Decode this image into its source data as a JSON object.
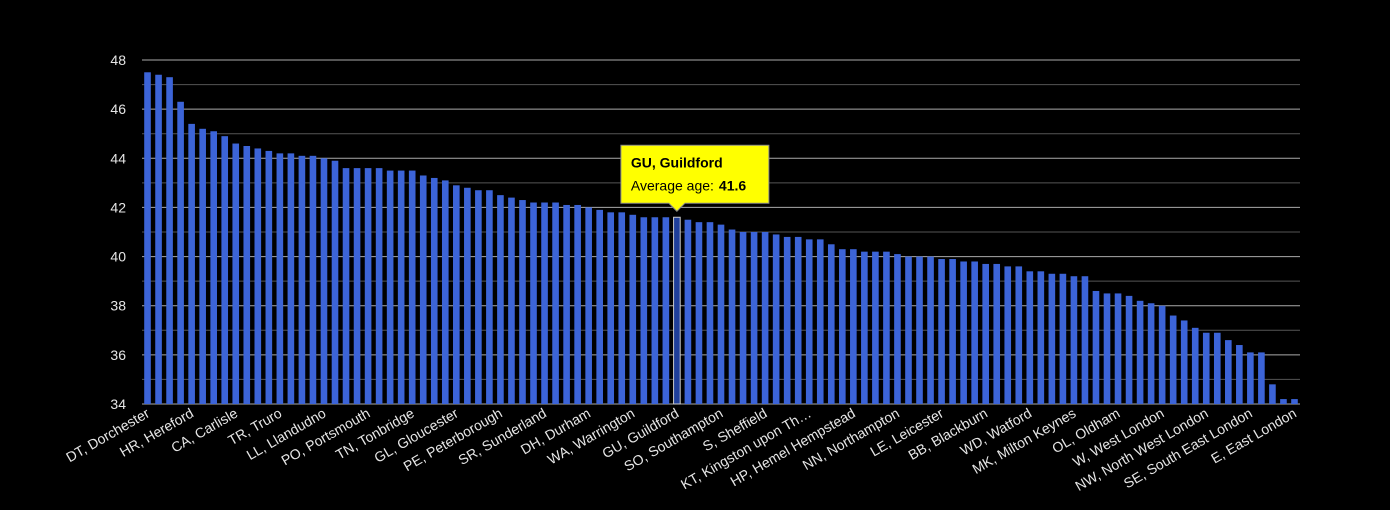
{
  "chart_data": {
    "type": "bar",
    "categories": [
      "DT, Dorchester",
      null,
      null,
      null,
      "HR, Hereford",
      null,
      null,
      null,
      "CA, Carlisle",
      null,
      null,
      null,
      "TR, Truro",
      null,
      null,
      null,
      "LL, Llandudno",
      null,
      null,
      null,
      "PO, Portsmouth",
      null,
      null,
      null,
      "TN, Tonbridge",
      null,
      null,
      null,
      "GL, Gloucester",
      null,
      null,
      null,
      "PE, Peterborough",
      null,
      null,
      null,
      "SR, Sunderland",
      null,
      null,
      null,
      "DH, Durham",
      null,
      null,
      null,
      "WA, Warrington",
      null,
      null,
      null,
      "GU, Guildford",
      null,
      null,
      null,
      "SO, Southampton",
      null,
      null,
      null,
      "S, Sheffield",
      null,
      null,
      null,
      "KT, Kingston upon Th…",
      null,
      null,
      null,
      "HP, Hemel Hempstead",
      null,
      null,
      null,
      "NN, Northampton",
      null,
      null,
      null,
      "LE, Leicester",
      null,
      null,
      null,
      "BB, Blackburn",
      null,
      null,
      null,
      "WD, Watford",
      null,
      null,
      null,
      "MK, Milton Keynes",
      null,
      null,
      null,
      "OL, Oldham",
      null,
      null,
      null,
      "W, West London",
      null,
      null,
      null,
      "NW, North West London",
      null,
      null,
      null,
      "SE, South East London",
      null,
      null,
      null,
      "E, East London"
    ],
    "values": [
      47.5,
      47.4,
      47.3,
      46.3,
      45.4,
      45.2,
      45.1,
      44.9,
      44.6,
      44.5,
      44.4,
      44.3,
      44.2,
      44.2,
      44.1,
      44.1,
      44.0,
      43.9,
      43.6,
      43.6,
      43.6,
      43.6,
      43.5,
      43.5,
      43.5,
      43.3,
      43.2,
      43.1,
      42.9,
      42.8,
      42.7,
      42.7,
      42.5,
      42.4,
      42.3,
      42.2,
      42.2,
      42.2,
      42.1,
      42.1,
      42.0,
      41.9,
      41.8,
      41.8,
      41.7,
      41.6,
      41.6,
      41.6,
      41.6,
      41.5,
      41.4,
      41.4,
      41.3,
      41.1,
      41.0,
      41.0,
      41.0,
      40.9,
      40.8,
      40.8,
      40.7,
      40.7,
      40.5,
      40.3,
      40.3,
      40.2,
      40.2,
      40.2,
      40.1,
      40.0,
      40.0,
      40.0,
      39.9,
      39.9,
      39.8,
      39.8,
      39.7,
      39.7,
      39.6,
      39.6,
      39.4,
      39.4,
      39.3,
      39.3,
      39.2,
      39.2,
      38.6,
      38.5,
      38.5,
      38.4,
      38.2,
      38.1,
      38.0,
      37.6,
      37.4,
      37.1,
      36.9,
      36.9,
      36.6,
      36.4,
      36.1,
      36.1,
      34.8,
      34.2,
      34.2
    ],
    "color": "#3c64d8",
    "ylim": [
      34,
      48
    ],
    "yticks": [
      34,
      36,
      38,
      40,
      42,
      44,
      46,
      48
    ],
    "yminorticks": [
      35,
      37,
      39,
      41,
      43,
      45,
      47
    ],
    "grid": true,
    "tooltip": {
      "title": "GU, Guildford",
      "label": "Average age:",
      "color": "#ffff00"
    }
  }
}
